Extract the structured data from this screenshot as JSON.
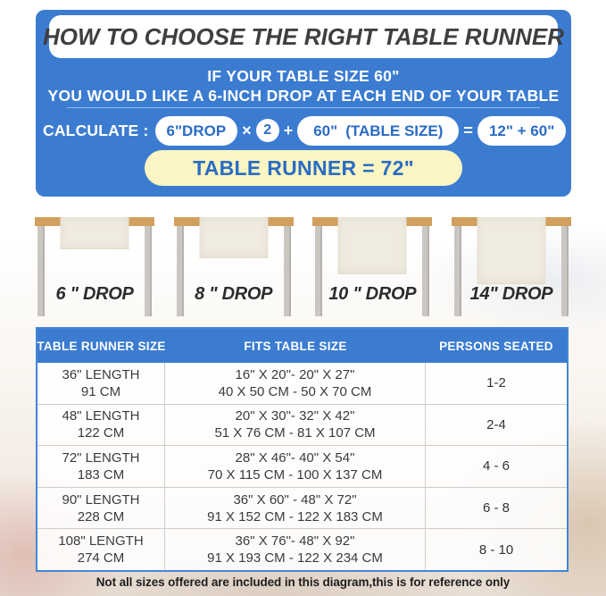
{
  "colors": {
    "panel_blue": "#3b7cd1",
    "pill_text_blue": "#2a6cc5",
    "banner_yellow": "#faf5c2",
    "tabletop_tan": "#d1a05f",
    "leg_gray": "#cac7c2",
    "runner_cream": "#f0ebe0"
  },
  "header": {
    "title": "HOW TO CHOOSE THE RIGHT TABLE RUNNER",
    "subtitle_line1": "IF YOUR TABLE SIZE 60\"",
    "subtitle_line2": "YOU WOULD LIKE A 6-INCH DROP AT EACH END OF YOUR TABLE",
    "calculate_label": "CALCULATE :",
    "formula": {
      "drop_pill": "6\"DROP",
      "times": "×",
      "multiplier": "2",
      "plus": "+",
      "table_size_value": "60\"",
      "table_size_label": "(TABLE SIZE)",
      "equals": "=",
      "result_pill": "12\" + 60\""
    },
    "result_banner": "TABLE RUNNER = 72\""
  },
  "diagram": {
    "tables": [
      {
        "label": "6 \" DROP"
      },
      {
        "label": "8 \" DROP"
      },
      {
        "label": "10 \" DROP"
      },
      {
        "label": "14\" DROP"
      }
    ]
  },
  "size_table": {
    "columns": [
      "TABLE RUNNER SIZE",
      "FITS TABLE SIZE",
      "PERSONS SEATED"
    ],
    "rows": [
      {
        "size1": "36\" LENGTH",
        "size2": "91 CM",
        "fits1": "16\" X 20\"- 20\" X 27\"",
        "fits2": "40 X 50 CM - 50 X 70 CM",
        "persons": "1-2"
      },
      {
        "size1": "48\" LENGTH",
        "size2": "122 CM",
        "fits1": "20\" X 30\"- 32\" X 42\"",
        "fits2": "51 X 76 CM - 81 X 107 CM",
        "persons": "2-4"
      },
      {
        "size1": "72\" LENGTH",
        "size2": "183 CM",
        "fits1": "28\" X 46\"- 40\" X 54\"",
        "fits2": "70 X 115 CM - 100 X 137 CM",
        "persons": "4 - 6"
      },
      {
        "size1": "90\" LENGTH",
        "size2": "228 CM",
        "fits1": "36\" X 60\" - 48\" X 72\"",
        "fits2": "91 X 152 CM - 122 X 183 CM",
        "persons": "6 - 8"
      },
      {
        "size1": "108\" LENGTH",
        "size2": "274 CM",
        "fits1": "36\" X 76\"- 48\" X 92\"",
        "fits2": "91 X 193 CM - 122 X 234 CM",
        "persons": "8 - 10"
      }
    ]
  },
  "footer": {
    "note": "Not all sizes offered are included in this diagram,this is for reference only"
  }
}
